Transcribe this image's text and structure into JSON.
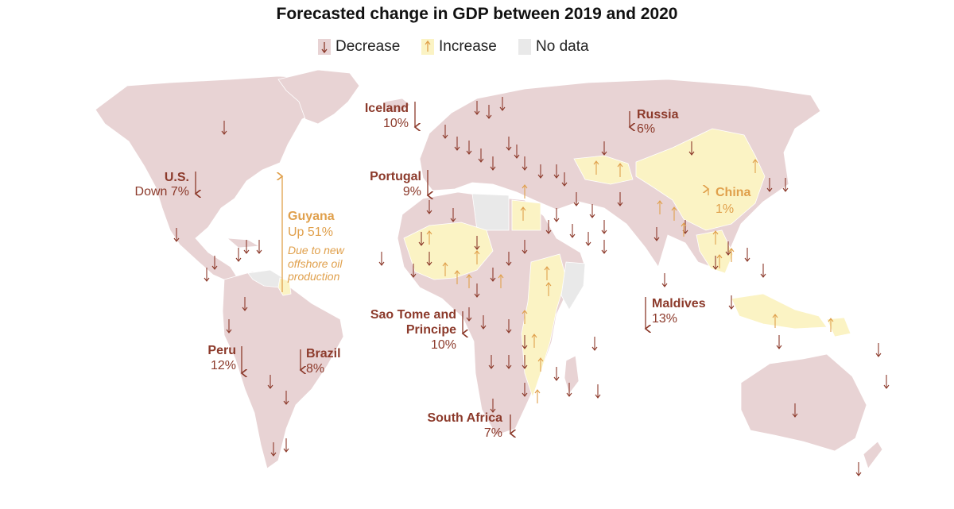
{
  "title": "Forecasted change in GDP between 2019 and 2020",
  "legend": {
    "decrease": "Decrease",
    "increase": "Increase",
    "no_data": "No data"
  },
  "colors": {
    "decrease_fill": "#e8d3d4",
    "decrease_arrow": "#8c3a2b",
    "increase_fill": "#fbf3c4",
    "increase_arrow": "#e0a04c",
    "no_data_fill": "#e9e9e9",
    "label_decrease": "#8c3a2b",
    "label_increase": "#e0a04c"
  },
  "callouts": {
    "us": {
      "name": "U.S.",
      "value": "Down 7%"
    },
    "iceland": {
      "name": "Iceland",
      "value": "10%"
    },
    "russia": {
      "name": "Russia",
      "value": "6%"
    },
    "portugal": {
      "name": "Portugal",
      "value": "9%"
    },
    "china": {
      "name": "China",
      "value": "1%"
    },
    "guyana": {
      "name": "Guyana",
      "value": "Up 51%",
      "note_1": "Due to new",
      "note_2": "offshore oil",
      "note_3": "production"
    },
    "maldives": {
      "name": "Maldives",
      "value": "13%"
    },
    "sao_tome": {
      "name_1": "Sao Tome and",
      "name_2": "Principe",
      "value": "10%"
    },
    "peru": {
      "name": "Peru",
      "value": "12%"
    },
    "brazil": {
      "name": "Brazil",
      "value": "8%"
    },
    "south_africa": {
      "name": "South Africa",
      "value": "7%"
    }
  }
}
